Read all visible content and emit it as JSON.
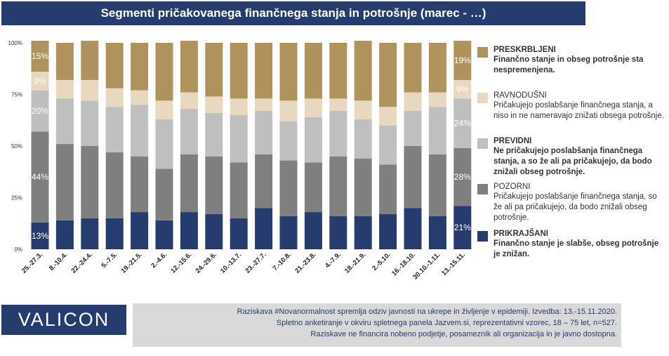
{
  "header": {
    "title": "Segmenti pričakovanega finančnega stanja in potrošnje (marec - …)"
  },
  "colors": {
    "prikrajsani": "#263b6e",
    "pozorni": "#7f7f7f",
    "previdni": "#bfbfbf",
    "ravnodusni": "#e8d8bf",
    "preskrbljeni": "#b0935c",
    "brand_navy": "#263b6e"
  },
  "chart_data": {
    "type": "bar",
    "stacked": true,
    "categories": [
      "25.-27.3.",
      "8.-10.4.",
      "22.-24.4.",
      "5.-7.5.",
      "19.-21.5.",
      "2.-4.6.",
      "12.-15.6.",
      "24.-29.6.",
      "10.-13.7.",
      "23.-27.7.",
      "7.-10.8.",
      "21.-23.8.",
      "4.-7.9.",
      "18.-21.9.",
      "2.-5.10.",
      "16.-18.10.",
      "30.10.-1.11.",
      "13.-15.11."
    ],
    "y_ticks": [
      "0%",
      "25%",
      "50%",
      "75%",
      "100%"
    ],
    "ylim": [
      0,
      100
    ],
    "series": [
      {
        "name": "PRIKRAJŠANI",
        "color": "#263b6e",
        "values": [
          13,
          14,
          15,
          15,
          18,
          14,
          18,
          17,
          15,
          20,
          16,
          18,
          16,
          16,
          17,
          20,
          16,
          21
        ]
      },
      {
        "name": "POZORNI",
        "color": "#7f7f7f",
        "values": [
          44,
          37,
          35,
          32,
          27,
          25,
          28,
          28,
          27,
          26,
          27,
          24,
          29,
          28,
          24,
          30,
          30,
          28
        ]
      },
      {
        "name": "PREVIDNI",
        "color": "#bfbfbf",
        "values": [
          20,
          22,
          22,
          22,
          25,
          24,
          22,
          21,
          23,
          21,
          19,
          22,
          22,
          19,
          19,
          17,
          23,
          24
        ]
      },
      {
        "name": "RAVNODUŠNI",
        "color": "#e8d8bf",
        "values": [
          9,
          9,
          10,
          9,
          7,
          9,
          8,
          8,
          8,
          6,
          10,
          9,
          6,
          9,
          9,
          9,
          7,
          9
        ]
      },
      {
        "name": "PRESKRBLJENI",
        "color": "#b0935c",
        "values": [
          15,
          18,
          19,
          22,
          23,
          28,
          25,
          26,
          27,
          27,
          28,
          27,
          27,
          29,
          31,
          24,
          24,
          19
        ]
      }
    ],
    "data_labels": [
      {
        "category_index": 0,
        "series_index": 0,
        "text": "13%"
      },
      {
        "category_index": 0,
        "series_index": 1,
        "text": "44%"
      },
      {
        "category_index": 0,
        "series_index": 2,
        "text": "20%"
      },
      {
        "category_index": 0,
        "series_index": 3,
        "text": "9%"
      },
      {
        "category_index": 0,
        "series_index": 4,
        "text": "15%"
      },
      {
        "category_index": 17,
        "series_index": 0,
        "text": "21%"
      },
      {
        "category_index": 17,
        "series_index": 1,
        "text": "28%"
      },
      {
        "category_index": 17,
        "series_index": 2,
        "text": "24%"
      },
      {
        "category_index": 17,
        "series_index": 3,
        "text": "9%"
      },
      {
        "category_index": 17,
        "series_index": 4,
        "text": "19%"
      }
    ],
    "legend_placement": "right",
    "grid": false
  },
  "legend": {
    "items": [
      {
        "name": "PRESKRBLJENI",
        "description": "Finančno stanje in obseg potrošnje sta nespremenjena.",
        "bold_desc": true,
        "color": "#b0935c"
      },
      {
        "name": "RAVNODUŠNI",
        "description": "Pričakujejo poslabšanje finančnega stanja, a niso in ne nameravajo znižati obsega potrošnje.",
        "bold_desc": false,
        "color": "#e8d8bf"
      },
      {
        "name": "PREVIDNI",
        "description": "Ne pričakujejo poslabšanja finančnega stanja, a so že ali pa pričakujejo, da bodo znižali obseg potrošnje.",
        "bold_desc": true,
        "color": "#bfbfbf"
      },
      {
        "name": "POZORNI",
        "description": "Pričakujejo poslabšanje finančnega stanja, so že ali pa pričakujejo, da bodo znižali obseg potrošnje.",
        "bold_desc": false,
        "color": "#7f7f7f"
      },
      {
        "name": "PRIKRAJŠANI",
        "description": "Finančno stanje je slabše, obseg potrošnje je znižan.",
        "bold_desc": true,
        "color": "#263b6e"
      }
    ]
  },
  "logo": {
    "text": "VALICON"
  },
  "footer": {
    "lines": [
      "Raziskava #Novanormalnost spremlja odziv javnosti na ukrepe in življenje v epidemiji. Izvedba: 13.-15.11.2020.",
      "Spletno anketiranje v okviru spletnega panela Jazvem.si, reprezentativni vzorec, 18 – 75 let, n=527.",
      "Raziskave ne financira nobeno podjetje, posameznik ali organizacija in je javno dostopna."
    ]
  }
}
